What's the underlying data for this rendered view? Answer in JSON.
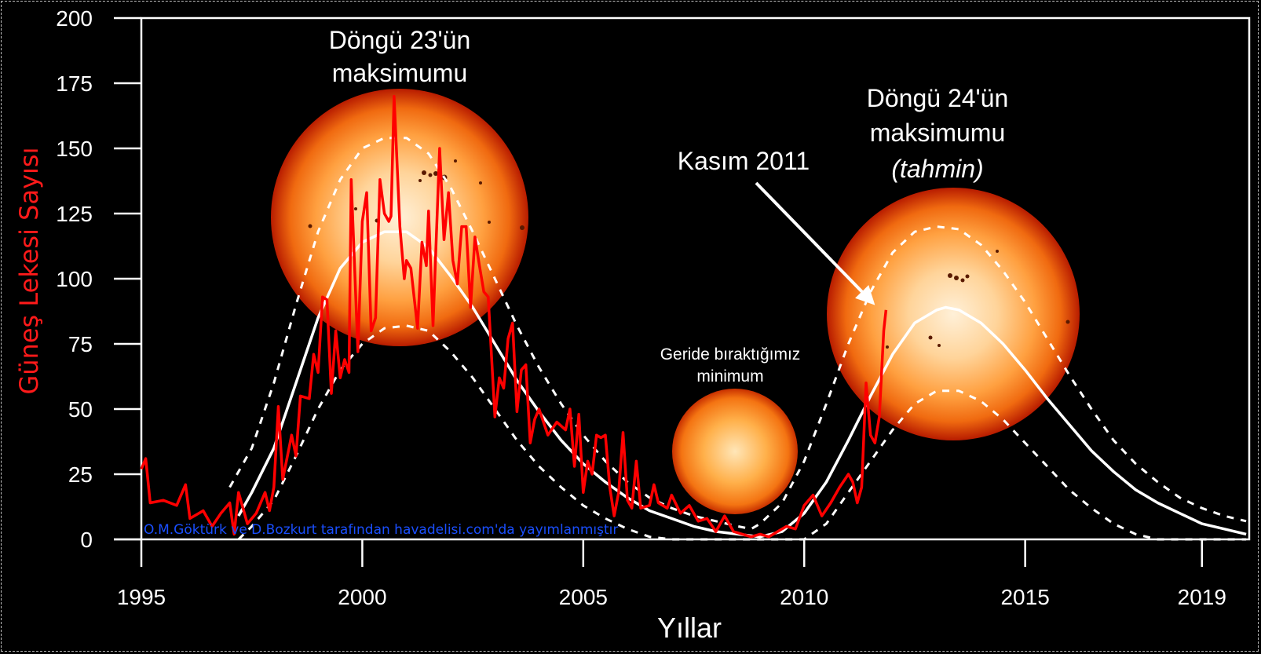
{
  "chart_data": {
    "type": "line",
    "xlabel": "Yıllar",
    "ylabel": "Güneş Lekesi Sayısı",
    "xlim": [
      1995,
      2020.07
    ],
    "ylim": [
      0,
      200
    ],
    "xticks": [
      1995,
      2000,
      2005,
      2010,
      2015,
      2019
    ],
    "xtick_labels": [
      "1995",
      "2000",
      "2005",
      "2010",
      "2015",
      "2019"
    ],
    "yticks": [
      0,
      25,
      50,
      75,
      100,
      125,
      150,
      175,
      200
    ],
    "ytick_labels": [
      "0",
      "25",
      "50",
      "75",
      "100",
      "125",
      "150",
      "175",
      "200"
    ],
    "grid": false,
    "colors": {
      "observed": "#ff0000",
      "predicted": "#ffffff",
      "ylabel": "#ff1a1a",
      "watermark": "#1a4fff"
    },
    "series": [
      {
        "name": "observed monthly sunspot number",
        "style": "solid-red",
        "x": [
          1995.0,
          1995.1,
          1995.2,
          1995.5,
          1995.8,
          1996.0,
          1996.1,
          1996.4,
          1996.6,
          1996.8,
          1997.0,
          1997.1,
          1997.2,
          1997.4,
          1997.6,
          1997.8,
          1997.9,
          1998.0,
          1998.1,
          1998.2,
          1998.4,
          1998.5,
          1998.6,
          1998.8,
          1998.9,
          1999.0,
          1999.1,
          1999.2,
          1999.3,
          1999.4,
          1999.5,
          1999.6,
          1999.7,
          1999.75,
          1999.9,
          2000.0,
          2000.1,
          2000.2,
          2000.3,
          2000.4,
          2000.5,
          2000.6,
          2000.65,
          2000.72,
          2000.85,
          2000.95,
          2001.0,
          2001.1,
          2001.25,
          2001.35,
          2001.45,
          2001.5,
          2001.6,
          2001.75,
          2001.85,
          2001.95,
          2002.05,
          2002.15,
          2002.25,
          2002.35,
          2002.45,
          2002.55,
          2002.65,
          2002.75,
          2002.85,
          2003.0,
          2003.1,
          2003.2,
          2003.3,
          2003.4,
          2003.5,
          2003.6,
          2003.7,
          2003.8,
          2003.9,
          2004.0,
          2004.2,
          2004.4,
          2004.6,
          2004.7,
          2004.8,
          2004.9,
          2005.0,
          2005.1,
          2005.2,
          2005.3,
          2005.4,
          2005.5,
          2005.6,
          2005.7,
          2005.8,
          2005.9,
          2006.0,
          2006.1,
          2006.2,
          2006.3,
          2006.5,
          2006.6,
          2006.7,
          2006.9,
          2007.0,
          2007.2,
          2007.4,
          2007.6,
          2007.8,
          2008.0,
          2008.2,
          2008.4,
          2008.6,
          2008.8,
          2009.0,
          2009.2,
          2009.4,
          2009.6,
          2009.8,
          2010.0,
          2010.2,
          2010.4,
          2010.6,
          2010.8,
          2011.0,
          2011.1,
          2011.2,
          2011.3,
          2011.4,
          2011.5,
          2011.6,
          2011.7,
          2011.8,
          2011.85
        ],
        "y": [
          27,
          31,
          14,
          15,
          13,
          21,
          8,
          11,
          5,
          10,
          14,
          2,
          18,
          6,
          10,
          18,
          11,
          20,
          51,
          23,
          40,
          32,
          55,
          54,
          71,
          64,
          93,
          92,
          56,
          80,
          62,
          69,
          64,
          138,
          72,
          122,
          133,
          80,
          85,
          138,
          125,
          122,
          124,
          170,
          120,
          100,
          107,
          104,
          81,
          114,
          105,
          126,
          82,
          150,
          115,
          133,
          107,
          98,
          120,
          120,
          89,
          116,
          105,
          95,
          93,
          47,
          62,
          58,
          77,
          83,
          49,
          65,
          67,
          37,
          46,
          50,
          40,
          45,
          42,
          50,
          28,
          48,
          18,
          30,
          25,
          40,
          39,
          40,
          20,
          9,
          18,
          41,
          15,
          12,
          30,
          12,
          13,
          21,
          14,
          12,
          17,
          10,
          13,
          7,
          8,
          3,
          9,
          3,
          2,
          1,
          2,
          1,
          3,
          5,
          4,
          13,
          17,
          9,
          14,
          20,
          25,
          22,
          14,
          20,
          60,
          40,
          37,
          47,
          80,
          88
        ]
      },
      {
        "name": "predicted smoothed (center)",
        "style": "solid-white",
        "x": [
          1997.2,
          1997.5,
          1998,
          1998.5,
          1999,
          1999.5,
          2000,
          2000.5,
          2001,
          2001.5,
          2002,
          2002.5,
          2003,
          2003.5,
          2004,
          2004.5,
          2005,
          2005.5,
          2006,
          2006.5,
          2007,
          2007.5,
          2008,
          2008.5,
          2009,
          2009.5,
          2010,
          2010.5,
          2011,
          2011.5,
          2012,
          2012.5,
          2013,
          2013.2,
          2013.5,
          2014,
          2014.5,
          2015,
          2015.5,
          2016,
          2016.5,
          2017,
          2017.5,
          2018,
          2018.5,
          2019,
          2019.5,
          2020
        ],
        "y": [
          9,
          18,
          35,
          60,
          85,
          104,
          114,
          118,
          118,
          112,
          101,
          89,
          75,
          61,
          49,
          38,
          29,
          22,
          16,
          11,
          8,
          5,
          3,
          2,
          1,
          3,
          10,
          22,
          38,
          55,
          71,
          83,
          88,
          89,
          88,
          83,
          75,
          65,
          54,
          44,
          34,
          26,
          19,
          14,
          10,
          6,
          4,
          2
        ]
      },
      {
        "name": "predicted upper bound",
        "style": "dashed-white",
        "x": [
          1997,
          1997.5,
          1998,
          1998.5,
          1999,
          1999.5,
          2000,
          2000.5,
          2001,
          2001.5,
          2002,
          2002.5,
          2003,
          2003.5,
          2004,
          2004.5,
          2005,
          2005.5,
          2006,
          2006.5,
          2007,
          2007.5,
          2008,
          2008.5,
          2008.8,
          2009,
          2009.5,
          2010,
          2010.5,
          2011,
          2011.5,
          2012,
          2012.5,
          2013,
          2013.5,
          2014,
          2014.5,
          2015,
          2015.5,
          2016,
          2016.5,
          2017,
          2017.5,
          2018,
          2018.5,
          2019,
          2019.5,
          2020
        ],
        "y": [
          20,
          35,
          60,
          90,
          118,
          138,
          150,
          154,
          154,
          148,
          135,
          118,
          100,
          82,
          66,
          52,
          40,
          30,
          22,
          16,
          12,
          9,
          7,
          5,
          4,
          6,
          14,
          30,
          52,
          75,
          95,
          110,
          118,
          120,
          119,
          113,
          103,
          91,
          77,
          63,
          50,
          38,
          29,
          22,
          16,
          12,
          9,
          7
        ]
      },
      {
        "name": "predicted lower bound",
        "style": "dashed-white",
        "x": [
          1997.2,
          1997.5,
          1998,
          1998.5,
          1999,
          1999.5,
          2000,
          2000.5,
          2001,
          2001.5,
          2002,
          2002.5,
          2003,
          2003.5,
          2004,
          2004.5,
          2005,
          2005.5,
          2006,
          2006.5,
          2007,
          2008,
          2009,
          2010,
          2010.5,
          2011,
          2011.5,
          2012,
          2012.5,
          2013,
          2013.5,
          2014,
          2014.5,
          2015,
          2015.5,
          2016,
          2016.5,
          2017,
          2017.5,
          2018,
          2019,
          2020
        ],
        "y": [
          0,
          5,
          15,
          32,
          50,
          65,
          75,
          81,
          82,
          80,
          72,
          62,
          50,
          38,
          28,
          20,
          13,
          8,
          4,
          1,
          0,
          0,
          0,
          0,
          6,
          18,
          30,
          42,
          52,
          57,
          57,
          53,
          46,
          37,
          28,
          19,
          12,
          6,
          2,
          0,
          0,
          0
        ]
      }
    ],
    "annotations": {
      "cycle23_line1": "Döngü 23'ün",
      "cycle23_line2": "maksimumu",
      "cycle24_line1": "Döngü 24'ün",
      "cycle24_line2": "maksimumu",
      "cycle24_line3": "(tahmin)",
      "arrow_label": "Kasım 2011",
      "minimum_line1": "Geride bıraktığımız",
      "minimum_line2": "minimum"
    },
    "watermark": "O.M.Göktürk ve D.Bozkurt tarafından havadelisi.com'da yayımlanmıştır"
  }
}
